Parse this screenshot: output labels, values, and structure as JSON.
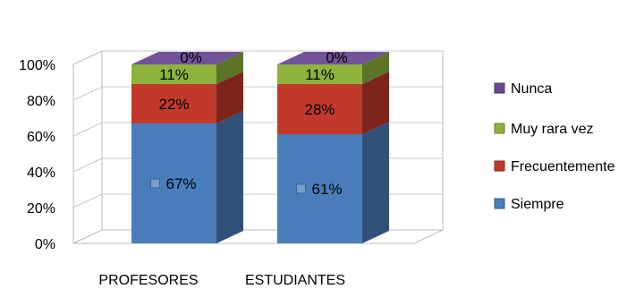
{
  "chart_data": {
    "type": "bar",
    "stacked": true,
    "three_d": true,
    "categories": [
      "PROFESORES",
      "ESTUDIANTES"
    ],
    "series": [
      {
        "name": "Siempre",
        "color": "#4a7ebb",
        "values": [
          67,
          61
        ],
        "labels": [
          "67%",
          "61%"
        ]
      },
      {
        "name": "Frecuentemente",
        "color": "#c0392b",
        "values": [
          22,
          28
        ],
        "labels": [
          "22%",
          "28%"
        ]
      },
      {
        "name": "Muy rara vez",
        "color": "#8db33c",
        "values": [
          11,
          11
        ],
        "labels": [
          "11%",
          "11%"
        ]
      },
      {
        "name": "Nunca",
        "color": "#6a4a93",
        "values": [
          0,
          0
        ],
        "labels": [
          "0%",
          "0%"
        ]
      }
    ],
    "y_ticks": [
      "0%",
      "20%",
      "40%",
      "60%",
      "80%",
      "100%"
    ],
    "ylim": [
      0,
      100
    ],
    "grid": true,
    "legend_position": "right",
    "legend_order": [
      "Nunca",
      "Muy rara vez",
      "Frecuentemente",
      "Siempre"
    ]
  }
}
